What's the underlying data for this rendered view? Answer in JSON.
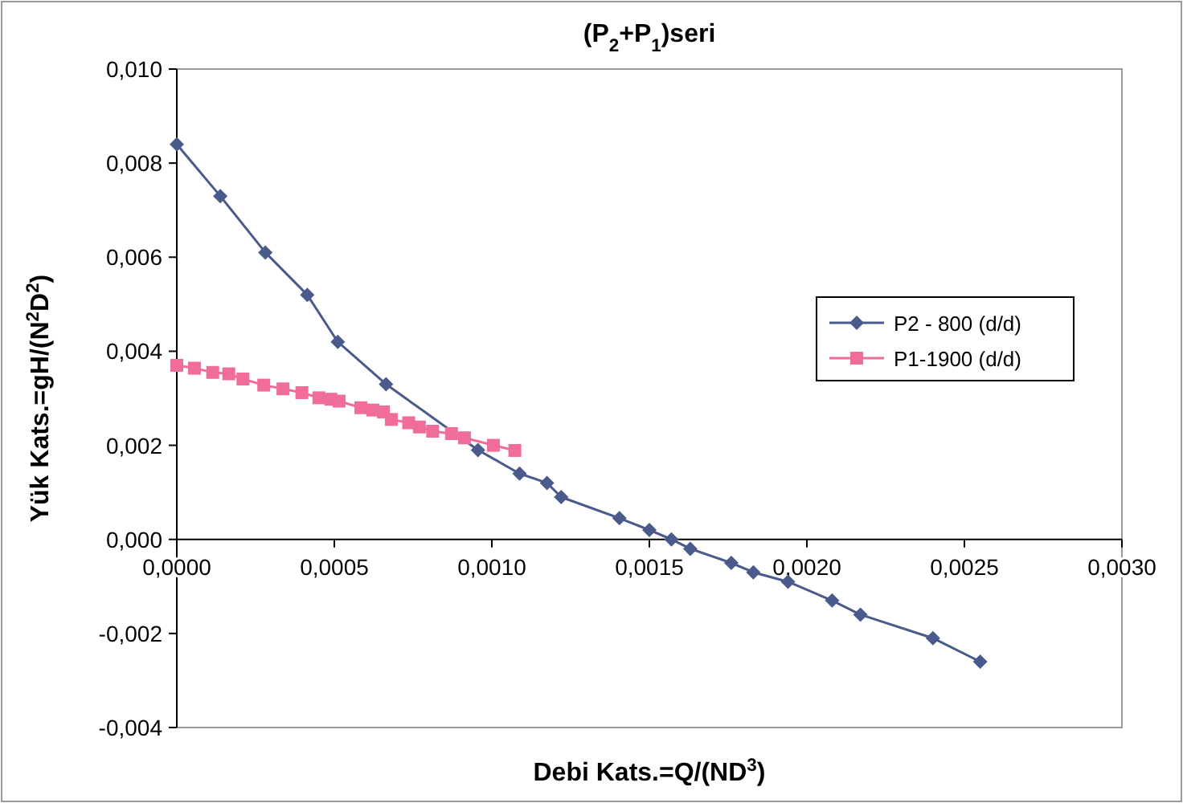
{
  "chart_data": {
    "type": "line",
    "title": "(P$_{2}$+P$_{1}$)seri",
    "xlabel": "Debi Kats.=Q/(ND$^{3}$)",
    "ylabel": "Yük Kats.=gH/(N$^{2}$D$^{2}$)",
    "xlim": [
      0,
      0.003
    ],
    "xticks": [
      {
        "value": 0,
        "label": "0,0000"
      },
      {
        "value": 0.0005,
        "label": "0,0005"
      },
      {
        "value": 0.001,
        "label": "0,0010"
      },
      {
        "value": 0.0015,
        "label": "0,0015"
      },
      {
        "value": 0.002,
        "label": "0,0020"
      },
      {
        "value": 0.0025,
        "label": "0,0025"
      },
      {
        "value": 0.003,
        "label": "0,0030"
      }
    ],
    "ylim": [
      -0.004,
      0.01
    ],
    "yticks": [
      {
        "value": -0.004,
        "label": "-0,004"
      },
      {
        "value": -0.002,
        "label": "-0,002"
      },
      {
        "value": 0,
        "label": "0,000"
      },
      {
        "value": 0.002,
        "label": "0,002"
      },
      {
        "value": 0.004,
        "label": "0,004"
      },
      {
        "value": 0.006,
        "label": "0,006"
      },
      {
        "value": 0.008,
        "label": "0,008"
      },
      {
        "value": 0.01,
        "label": "0,010"
      }
    ],
    "grid": false,
    "legend": "right",
    "line_style": "solid",
    "series": [
      {
        "name": "P2 - 800 (d/d)",
        "color": "#4a5a8c",
        "marker": "diamond",
        "x": [
          0,
          0.000138,
          0.000281,
          0.000414,
          0.000511,
          0.000664,
          0.000956,
          0.001088,
          0.001175,
          0.00122,
          0.001405,
          0.0015,
          0.00157,
          0.00163,
          0.00176,
          0.00183,
          0.00194,
          0.00208,
          0.00217,
          0.0024,
          0.00255
        ],
        "values": [
          0.0084,
          0.0073,
          0.0061,
          0.0052,
          0.0042,
          0.0033,
          0.0019,
          0.0014,
          0.0012,
          0.0009,
          0.00045,
          0.0002,
          0,
          -0.0002,
          -0.0005,
          -0.0007,
          -0.0009,
          -0.0013,
          -0.0016,
          -0.0021,
          -0.0026
        ]
      },
      {
        "name": "P1-1900 (d/d)",
        "color": "#f06c9b",
        "marker": "square",
        "x": [
          0,
          5.6e-05,
          0.000114,
          0.000165,
          0.00021,
          0.000276,
          0.000337,
          0.000397,
          0.000451,
          0.000489,
          0.000515,
          0.000584,
          0.000622,
          0.000656,
          0.000681,
          0.000736,
          0.00077,
          0.000812,
          0.000872,
          0.000913,
          0.001005,
          0.001073
        ],
        "values": [
          0.0037,
          0.00364,
          0.00355,
          0.00352,
          0.00341,
          0.00328,
          0.0032,
          0.00312,
          0.00301,
          0.00298,
          0.00294,
          0.0028,
          0.00275,
          0.00271,
          0.00255,
          0.00248,
          0.00239,
          0.0023,
          0.00225,
          0.00216,
          0.002,
          0.00189
        ]
      }
    ]
  }
}
